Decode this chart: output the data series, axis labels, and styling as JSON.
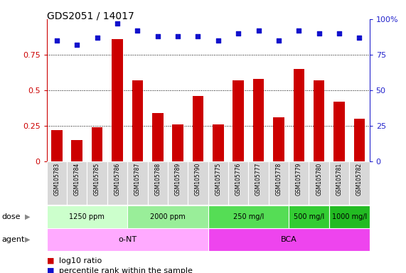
{
  "title": "GDS2051 / 14017",
  "samples": [
    "GSM105783",
    "GSM105784",
    "GSM105785",
    "GSM105786",
    "GSM105787",
    "GSM105788",
    "GSM105789",
    "GSM105790",
    "GSM105775",
    "GSM105776",
    "GSM105777",
    "GSM105778",
    "GSM105779",
    "GSM105780",
    "GSM105781",
    "GSM105782"
  ],
  "log10_ratio": [
    0.22,
    0.15,
    0.24,
    0.86,
    0.57,
    0.34,
    0.26,
    0.46,
    0.26,
    0.57,
    0.58,
    0.31,
    0.65,
    0.57,
    0.42,
    0.3
  ],
  "percentile_rank": [
    85,
    82,
    87,
    97,
    92,
    88,
    88,
    88,
    85,
    90,
    92,
    85,
    92,
    90,
    90,
    87
  ],
  "bar_color": "#cc0000",
  "dot_color": "#1111cc",
  "ylim_left": [
    0,
    1.0
  ],
  "ylim_right": [
    0,
    100
  ],
  "yticks_left": [
    0,
    0.25,
    0.5,
    0.75
  ],
  "yticks_left_labels": [
    "0",
    "0.25",
    "0.5",
    "0.75"
  ],
  "yticks_right": [
    0,
    25,
    50,
    75,
    100
  ],
  "yticks_right_labels": [
    "0",
    "25",
    "50",
    "75",
    "100%"
  ],
  "dose_groups": [
    {
      "label": "1250 ppm",
      "start": 0,
      "end": 4,
      "color": "#ccffcc"
    },
    {
      "label": "2000 ppm",
      "start": 4,
      "end": 8,
      "color": "#99ee99"
    },
    {
      "label": "250 mg/l",
      "start": 8,
      "end": 12,
      "color": "#55dd55"
    },
    {
      "label": "500 mg/l",
      "start": 12,
      "end": 14,
      "color": "#33cc33"
    },
    {
      "label": "1000 mg/l",
      "start": 14,
      "end": 16,
      "color": "#22bb22"
    }
  ],
  "agent_groups": [
    {
      "label": "o-NT",
      "start": 0,
      "end": 8,
      "color": "#ffaaff"
    },
    {
      "label": "BCA",
      "start": 8,
      "end": 16,
      "color": "#ee44ee"
    }
  ],
  "dose_label": "dose",
  "agent_label": "agent",
  "legend_bar_label": "log10 ratio",
  "legend_dot_label": "percentile rank within the sample",
  "bg_color": "#ffffff",
  "tick_label_color_left": "#cc0000",
  "tick_label_color_right": "#2222cc"
}
